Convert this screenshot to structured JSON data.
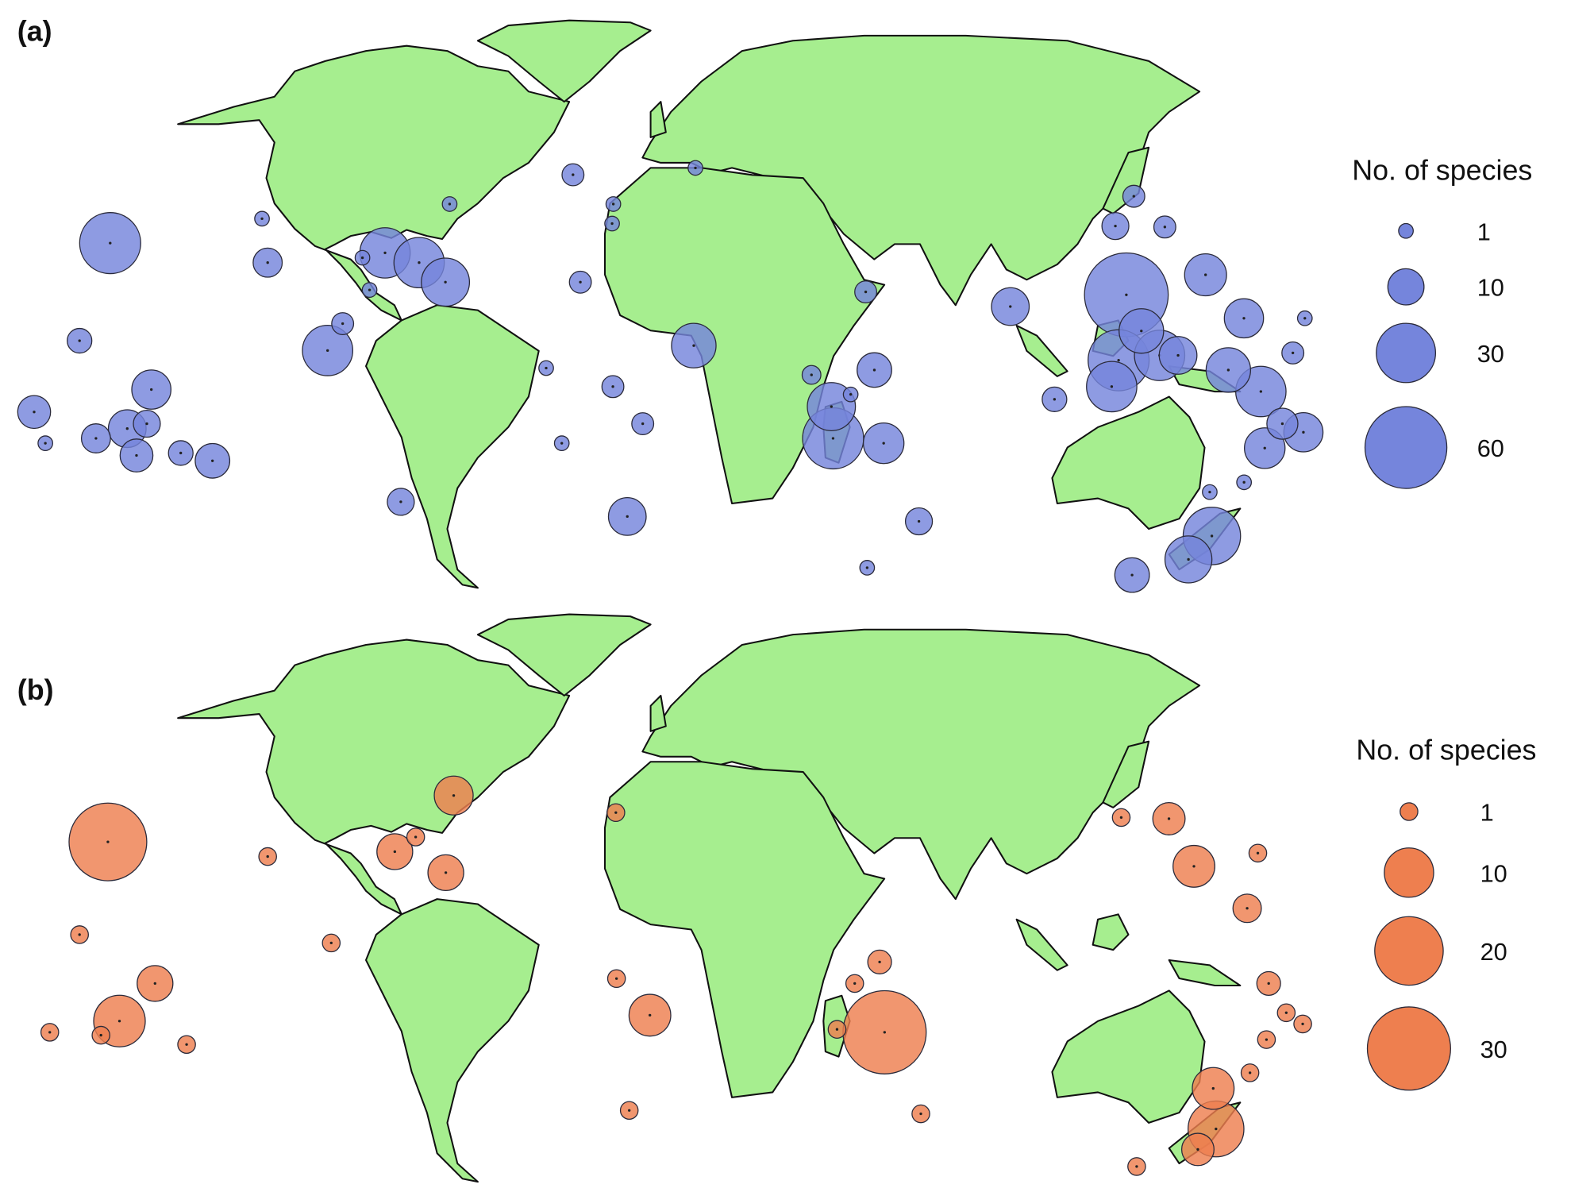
{
  "colors": {
    "land": "#a6ee8f",
    "border": "#111111"
  },
  "panels": [
    {
      "label": "(a)",
      "color": "#7585dc",
      "legend": {
        "title": "No. of species",
        "entries": [
          "1",
          "10",
          "30",
          "60"
        ]
      },
      "points": [
        [
          -157,
          20,
          32
        ],
        [
          -117,
          25,
          1
        ],
        [
          -111,
          16,
          6
        ],
        [
          -159,
          0,
          4
        ],
        [
          -92,
          -2,
          21
        ],
        [
          -88,
          3.5,
          3
        ],
        [
          -175,
          -14.6,
          8
        ],
        [
          -176,
          -21,
          1
        ],
        [
          -141,
          -10,
          12
        ],
        [
          -151,
          -18,
          11
        ],
        [
          -145,
          -17,
          5
        ],
        [
          -161,
          -20,
          6
        ],
        [
          -152,
          -23.5,
          8
        ],
        [
          -139,
          -23,
          4
        ],
        [
          -131,
          -24.6,
          9
        ],
        [
          -79,
          18,
          21
        ],
        [
          -69,
          16,
          21
        ],
        [
          -61,
          12,
          19
        ],
        [
          -85,
          17,
          1
        ],
        [
          -81.5,
          10.4,
          1
        ],
        [
          -64,
          28,
          1
        ],
        [
          -29,
          34,
          3
        ],
        [
          -16,
          28,
          1
        ],
        [
          -16,
          24,
          1
        ],
        [
          -24,
          12,
          3
        ],
        [
          8.5,
          35.4,
          1
        ],
        [
          7,
          -1,
          16
        ],
        [
          -33,
          -5.6,
          1
        ],
        [
          -15,
          -9.4,
          3
        ],
        [
          -7,
          -17,
          3
        ],
        [
          -30,
          -21,
          1
        ],
        [
          -81,
          -33,
          5
        ],
        [
          -12.6,
          -36,
          11
        ],
        [
          54,
          10,
          3
        ],
        [
          56,
          -6,
          9
        ],
        [
          39,
          -7,
          2
        ],
        [
          50,
          -11,
          1
        ],
        [
          45,
          -13.5,
          19
        ],
        [
          46.5,
          -20,
          32
        ],
        [
          61,
          -21,
          13
        ],
        [
          78.6,
          -37,
          5
        ],
        [
          68.7,
          -46.5,
          1
        ],
        [
          93,
          7,
          11
        ],
        [
          138,
          29.6,
          3
        ],
        [
          128,
          23.5,
          5
        ],
        [
          142,
          23.3,
          3
        ],
        [
          125,
          9.4,
          63
        ],
        [
          128,
          2,
          16
        ],
        [
          122,
          -4,
          32
        ],
        [
          133,
          -3,
          21
        ],
        [
          138,
          -3,
          11
        ],
        [
          148,
          13.5,
          14
        ],
        [
          121,
          -9.4,
          21
        ],
        [
          106,
          -12,
          4
        ],
        [
          152,
          -6,
          16
        ],
        [
          162,
          -10.4,
          21
        ],
        [
          156,
          4.6,
          12
        ],
        [
          169,
          -2.5,
          3
        ],
        [
          172.5,
          4.6,
          1
        ],
        [
          171,
          -17,
          7
        ],
        [
          178,
          -18.75,
          12
        ],
        [
          169.5,
          -22,
          13
        ],
        [
          162,
          -31,
          1
        ],
        [
          170,
          -29,
          1
        ],
        [
          175,
          -40,
          28
        ],
        [
          176,
          -44.8,
          18
        ],
        [
          163,
          -48,
          9
        ]
      ]
    },
    {
      "label": "(b)",
      "color": "#ee7f4f",
      "legend": {
        "title": "No. of species",
        "entries": [
          "1",
          "10",
          "20",
          "30"
        ]
      },
      "points": [
        [
          -157,
          19,
          26
        ],
        [
          -111,
          16,
          1
        ],
        [
          -159,
          0,
          1
        ],
        [
          -91,
          -1.7,
          1
        ],
        [
          -140,
          -10,
          5
        ],
        [
          -153,
          -17.7,
          11
        ],
        [
          -174,
          -20,
          1
        ],
        [
          -160,
          -20.6,
          1
        ],
        [
          -137,
          -22.5,
          1
        ],
        [
          -63,
          28.5,
          6
        ],
        [
          -76,
          17,
          5
        ],
        [
          -71,
          20,
          1
        ],
        [
          -61,
          12.7,
          5
        ],
        [
          -15,
          25,
          1
        ],
        [
          -14,
          -9,
          1
        ],
        [
          -5,
          -16.5,
          7
        ],
        [
          -12,
          -36,
          1
        ],
        [
          57.4,
          -5.6,
          2
        ],
        [
          51,
          -10,
          1
        ],
        [
          47.5,
          -19.4,
          1
        ],
        [
          61,
          -20,
          30
        ],
        [
          79,
          -36.7,
          1
        ],
        [
          130,
          24,
          1
        ],
        [
          143.5,
          23.75,
          4
        ],
        [
          145,
          14,
          7
        ],
        [
          164,
          16.7,
          1
        ],
        [
          157,
          5.4,
          3
        ],
        [
          164,
          -10,
          2
        ],
        [
          171.5,
          -16,
          1
        ],
        [
          169.6,
          -21.5,
          1
        ],
        [
          177.5,
          -18.3,
          1
        ],
        [
          171,
          -28.3,
          1
        ],
        [
          163.6,
          -31.5,
          7
        ],
        [
          176,
          -39.8,
          13
        ],
        [
          177.6,
          -44,
          4
        ],
        [
          163.6,
          -47.5,
          1
        ]
      ]
    }
  ]
}
